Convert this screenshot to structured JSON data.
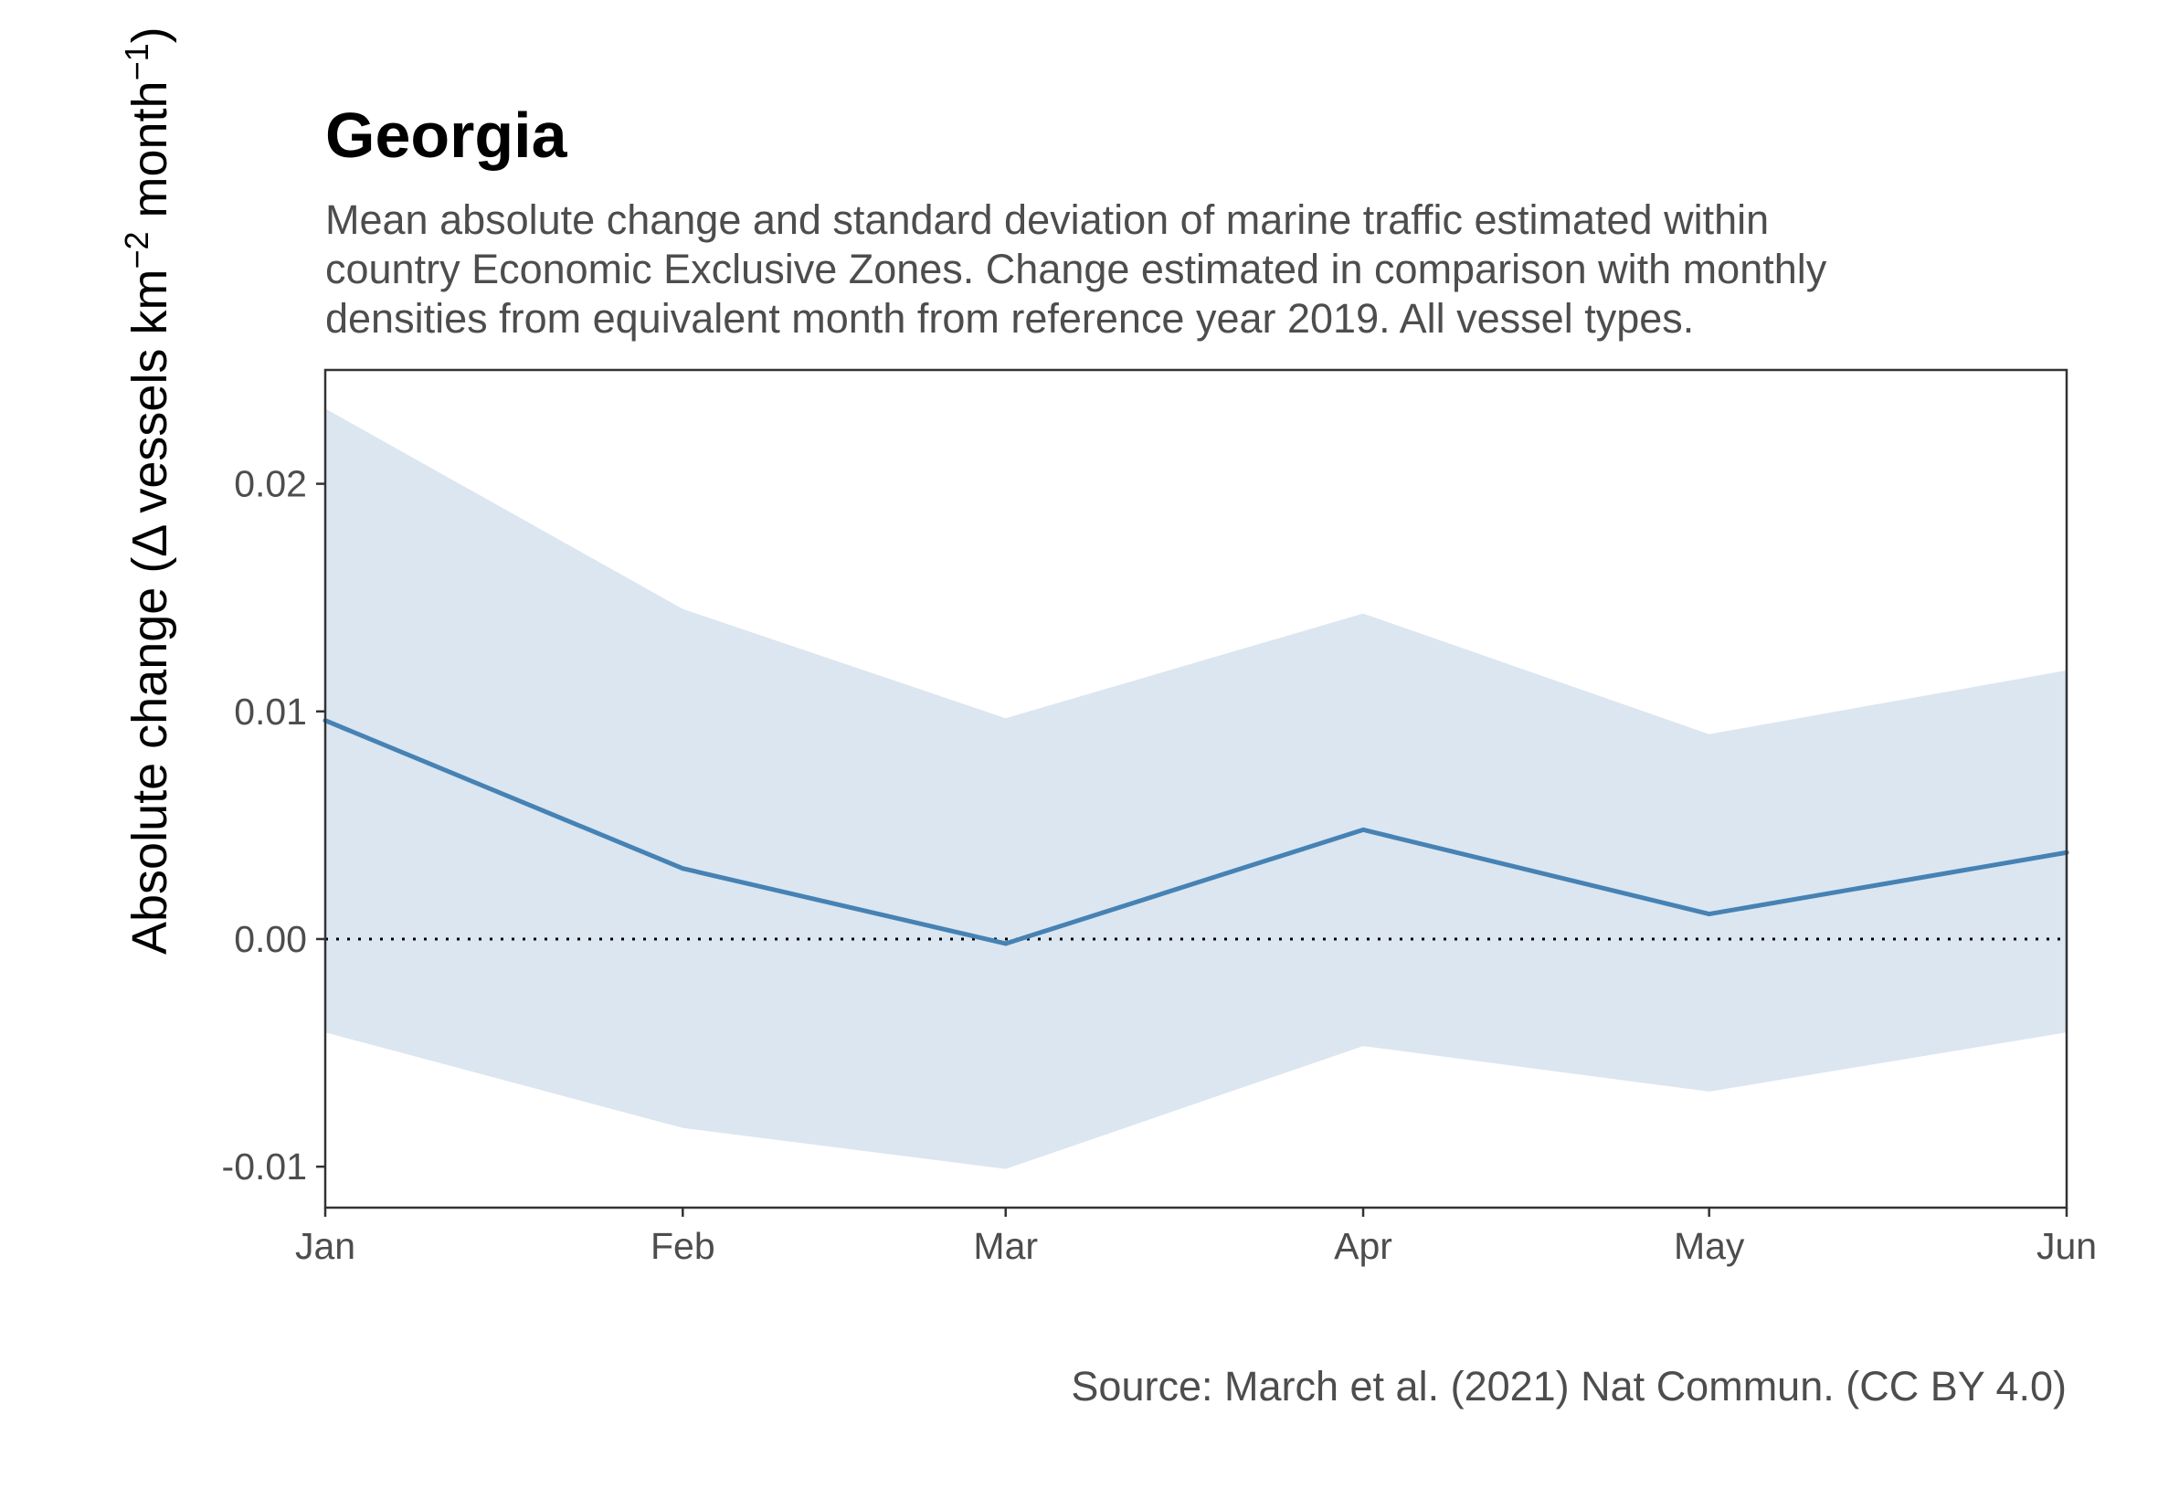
{
  "chart_data": {
    "type": "area",
    "title": "Georgia",
    "subtitle_lines": [
      "Mean absolute change and standard deviation of marine traffic estimated within",
      "country Economic Exclusive Zones. Change estimated in comparison with monthly",
      "densities from equivalent month from reference year 2019. All vessel types."
    ],
    "ylabel": {
      "main": "Absolute change (",
      "delta": "Δ",
      "unit": " vessels km",
      "sup1": "−2",
      "unit2": " month",
      "sup2": "−1",
      "close": ")"
    },
    "xlabel": "",
    "caption": "Source: March et al. (2021) Nat Commun. (CC BY 4.0)",
    "categories": [
      "Jan",
      "Feb",
      "Mar",
      "Apr",
      "May",
      "Jun"
    ],
    "series": [
      {
        "values": [
          0.0096,
          0.0031,
          -0.0002,
          0.0048,
          0.0011,
          0.0038
        ]
      }
    ],
    "band_upper": [
      0.0233,
      0.0145,
      0.0097,
      0.0143,
      0.009,
      0.0118
    ],
    "band_lower": [
      -0.0041,
      -0.0083,
      -0.0101,
      -0.0047,
      -0.0067,
      -0.0041
    ],
    "ylim": [
      -0.0118,
      0.025
    ],
    "yticks": [
      -0.01,
      0.0,
      0.01,
      0.02
    ],
    "ytick_labels": [
      "-0.01",
      "0.00",
      "0.01",
      "0.02"
    ],
    "reference_line": 0,
    "grid": false,
    "colors": {
      "line": "#4682b4",
      "band": "#dbe6f0",
      "reference": "#000000",
      "frame": "#333333"
    }
  }
}
